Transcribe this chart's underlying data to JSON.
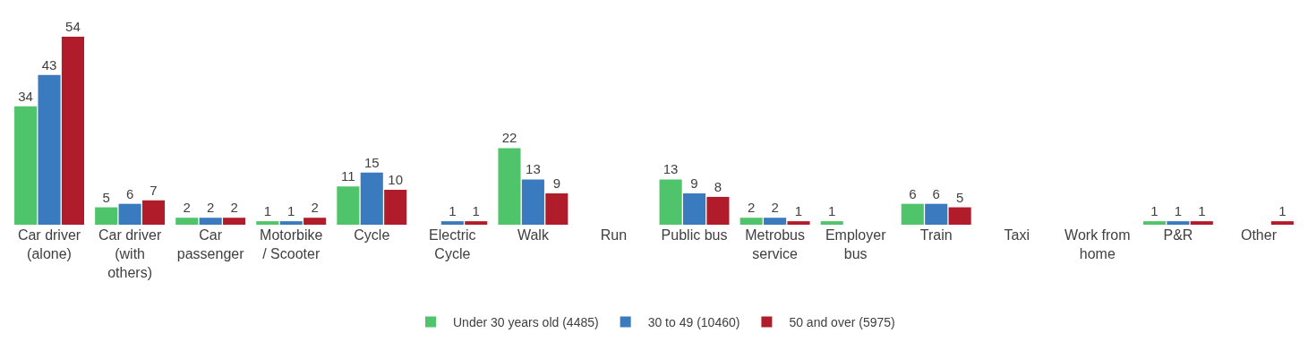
{
  "chart_data": {
    "type": "bar",
    "categories": [
      "Car driver (alone)",
      "Car driver (with others)",
      "Car passenger",
      "Motorbike / Scooter",
      "Cycle",
      "Electric Cycle",
      "Walk",
      "Run",
      "Public bus",
      "Metrobus service",
      "Employer bus",
      "Train",
      "Taxi",
      "Work from home",
      "P&R",
      "Other"
    ],
    "series": [
      {
        "name": "Under 30 years old (4485)",
        "color": "#4fc46a",
        "values": [
          34,
          5,
          2,
          1,
          11,
          null,
          22,
          null,
          13,
          2,
          1,
          6,
          null,
          null,
          1,
          null
        ]
      },
      {
        "name": "30 to 49 (10460)",
        "color": "#3a7abf",
        "values": [
          43,
          6,
          2,
          1,
          15,
          1,
          13,
          null,
          9,
          2,
          null,
          6,
          null,
          null,
          1,
          null
        ]
      },
      {
        "name": "50 and over (5975)",
        "color": "#b01c2a",
        "values": [
          54,
          7,
          2,
          2,
          10,
          1,
          9,
          null,
          8,
          1,
          null,
          5,
          null,
          null,
          1,
          1
        ]
      }
    ],
    "data_labels": true,
    "legend": "bottom"
  }
}
